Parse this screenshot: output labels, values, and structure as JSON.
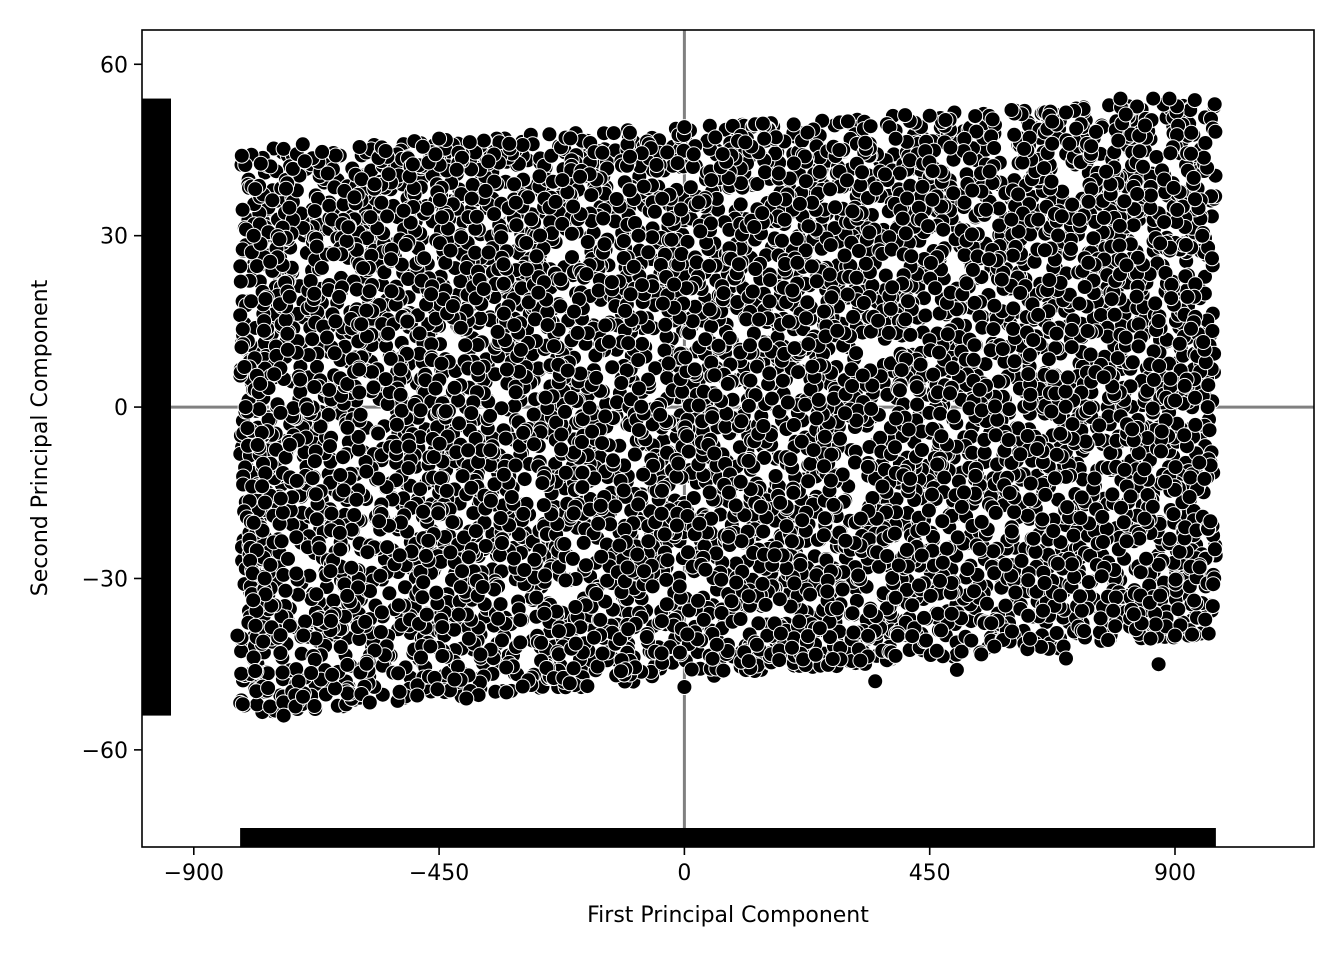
{
  "chart_data": {
    "type": "scatter",
    "title": "",
    "xlabel": "First Principal Component",
    "ylabel": "Second Principal Component",
    "xlim": [
      -995,
      1155
    ],
    "ylim": [
      -77,
      66
    ],
    "xticks": [
      -900,
      -450,
      0,
      450,
      900
    ],
    "yticks": [
      60,
      30,
      0,
      -30,
      -60
    ],
    "xtick_labels": [
      "−900",
      "−450",
      "0",
      "450",
      "900"
    ],
    "ytick_labels": [
      "60",
      "30",
      "0",
      "−30",
      "−60"
    ],
    "reference_lines": {
      "x": 0,
      "y": 0,
      "color": "#808080"
    },
    "grid": false,
    "legend": "none",
    "marker": {
      "fill": "#000000",
      "edge": "#ffffff"
    },
    "series": [
      {
        "region": {
          "x_range": [
            -815,
            975
          ],
          "top_edge": {
            "at_x_min": 45,
            "at_x_max": 54
          },
          "bottom_edge": {
            "at_x_min": -54,
            "at_x_max": -40
          }
        },
        "sample_points": [
          [
            -812,
            44
          ],
          [
            -810,
            -52
          ],
          [
            -805,
            0
          ],
          [
            -790,
            30
          ],
          [
            -770,
            -30
          ],
          [
            -735,
            -54
          ],
          [
            -700,
            46
          ],
          [
            -640,
            15
          ],
          [
            -560,
            -20
          ],
          [
            -450,
            47
          ],
          [
            -400,
            -51
          ],
          [
            -300,
            10
          ],
          [
            -200,
            -35
          ],
          [
            -100,
            48
          ],
          [
            0,
            49
          ],
          [
            0,
            -49
          ],
          [
            100,
            25
          ],
          [
            200,
            -15
          ],
          [
            300,
            50
          ],
          [
            350,
            -48
          ],
          [
            450,
            51
          ],
          [
            500,
            -46
          ],
          [
            600,
            52
          ],
          [
            700,
            -44
          ],
          [
            800,
            54
          ],
          [
            860,
            54
          ],
          [
            890,
            54
          ],
          [
            930,
            48
          ],
          [
            950,
            30
          ],
          [
            960,
            0
          ],
          [
            965,
            -20
          ],
          [
            970,
            -31
          ],
          [
            870,
            -45
          ],
          [
            900,
            -40
          ],
          [
            -820,
            -40
          ]
        ]
      }
    ],
    "rug": {
      "x_axis": {
        "from": -815,
        "to": 975
      },
      "y_axis": {
        "from": -54,
        "to": 54
      }
    },
    "colors": {
      "marker": "#000000",
      "marker_edge": "#ffffff",
      "reference_line": "#808080",
      "rug": "#000000"
    }
  }
}
